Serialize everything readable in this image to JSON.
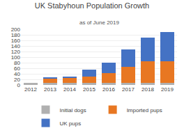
{
  "chart_data": {
    "type": "bar",
    "title": "UK Stabyhoun Population Growth",
    "subtitle": "as of June 2019",
    "categories": [
      "2012",
      "2013",
      "2014",
      "2015",
      "2016",
      "2017",
      "2018",
      "2019"
    ],
    "series": [
      {
        "name": "Initial dogs",
        "color": "#b0b0b0",
        "values": [
          8,
          8,
          8,
          8,
          8,
          8,
          8,
          8
        ]
      },
      {
        "name": "Imported pups",
        "color": "#e87722",
        "values": [
          0,
          14,
          18,
          22,
          35,
          58,
          77,
          77
        ]
      },
      {
        "name": "UK pups",
        "color": "#4472c4",
        "values": [
          0,
          5,
          5,
          25,
          37,
          62,
          85,
          105
        ]
      }
    ],
    "stacked": true,
    "ylim": [
      0,
      200
    ],
    "yticks": [
      0,
      20,
      40,
      60,
      80,
      100,
      120,
      140,
      160,
      180,
      200
    ],
    "grid": true,
    "legend": "bottom"
  }
}
